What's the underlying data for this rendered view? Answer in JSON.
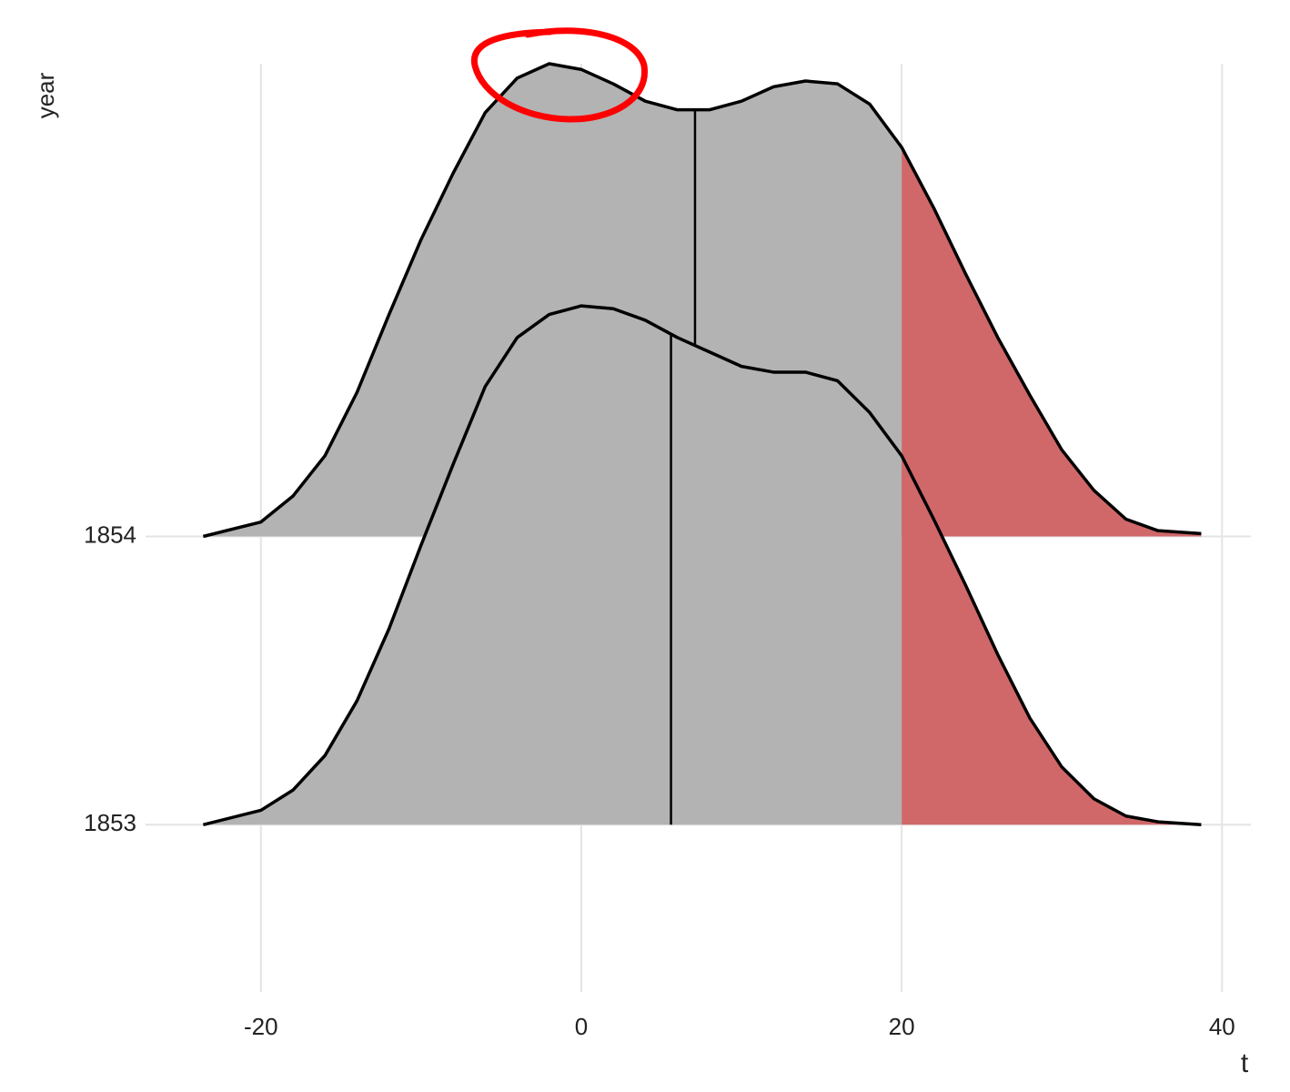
{
  "chart_data": {
    "type": "ridgeline",
    "x_label": "t",
    "y_label": "year",
    "categories": [
      "1853",
      "1854"
    ],
    "x": [
      -23.6,
      -20,
      -18,
      -16,
      -14,
      -12,
      -10,
      -8,
      -6,
      -4,
      -2,
      0,
      2,
      4,
      6,
      8,
      10,
      12,
      14,
      16,
      18,
      20,
      22,
      24,
      26,
      28,
      30,
      32,
      34,
      36,
      38.7
    ],
    "ridges": [
      {
        "values": [
          0.0,
          0.05,
          0.12,
          0.24,
          0.43,
          0.68,
          0.97,
          1.25,
          1.52,
          1.69,
          1.77,
          1.8,
          1.79,
          1.75,
          1.69,
          1.64,
          1.59,
          1.57,
          1.57,
          1.54,
          1.43,
          1.28,
          1.06,
          0.83,
          0.59,
          0.37,
          0.2,
          0.09,
          0.03,
          0.01,
          0.0
        ],
        "median": 5.6
      },
      {
        "values": [
          0.0,
          0.05,
          0.14,
          0.28,
          0.5,
          0.77,
          1.03,
          1.26,
          1.47,
          1.59,
          1.64,
          1.62,
          1.57,
          1.51,
          1.48,
          1.48,
          1.51,
          1.56,
          1.58,
          1.57,
          1.5,
          1.35,
          1.14,
          0.91,
          0.69,
          0.49,
          0.3,
          0.16,
          0.06,
          0.02,
          0.01
        ],
        "median": 7.1
      }
    ],
    "threshold": 20,
    "fill_color": "#b3b3b3",
    "tail_color": "#d0686a",
    "xlim": [
      -27.2,
      41.8
    ],
    "xticks": [
      -20,
      0,
      20,
      40
    ],
    "ylim": [
      -0.58,
      2.64
    ],
    "grid": true
  }
}
